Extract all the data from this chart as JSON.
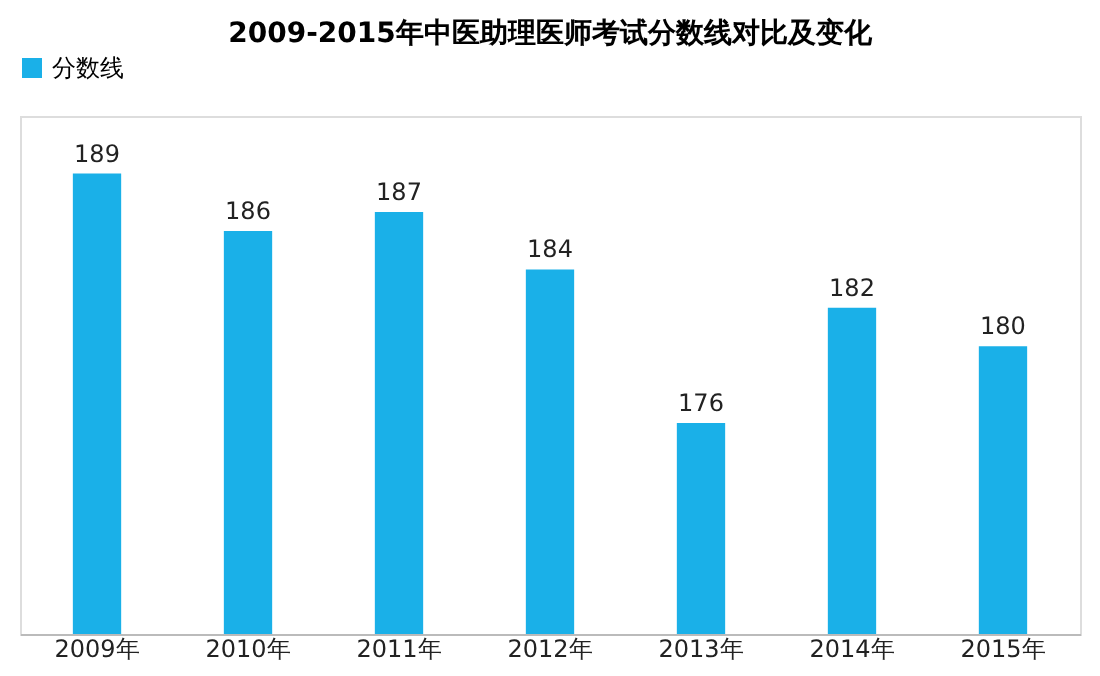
{
  "chart_data": {
    "type": "bar",
    "title": "2009-2015年中医助理医师考试分数线对比及变化",
    "categories": [
      "2009年",
      "2010年",
      "2011年",
      "2012年",
      "2013年",
      "2014年",
      "2015年"
    ],
    "series": [
      {
        "name": "分数线",
        "color": "#1ab0e8",
        "values": [
          189,
          186,
          187,
          184,
          176,
          182,
          180
        ]
      }
    ],
    "ylim": [
      165,
      192
    ],
    "tick_labels": "x",
    "data_labels": true,
    "legend": "top",
    "grid": false
  }
}
